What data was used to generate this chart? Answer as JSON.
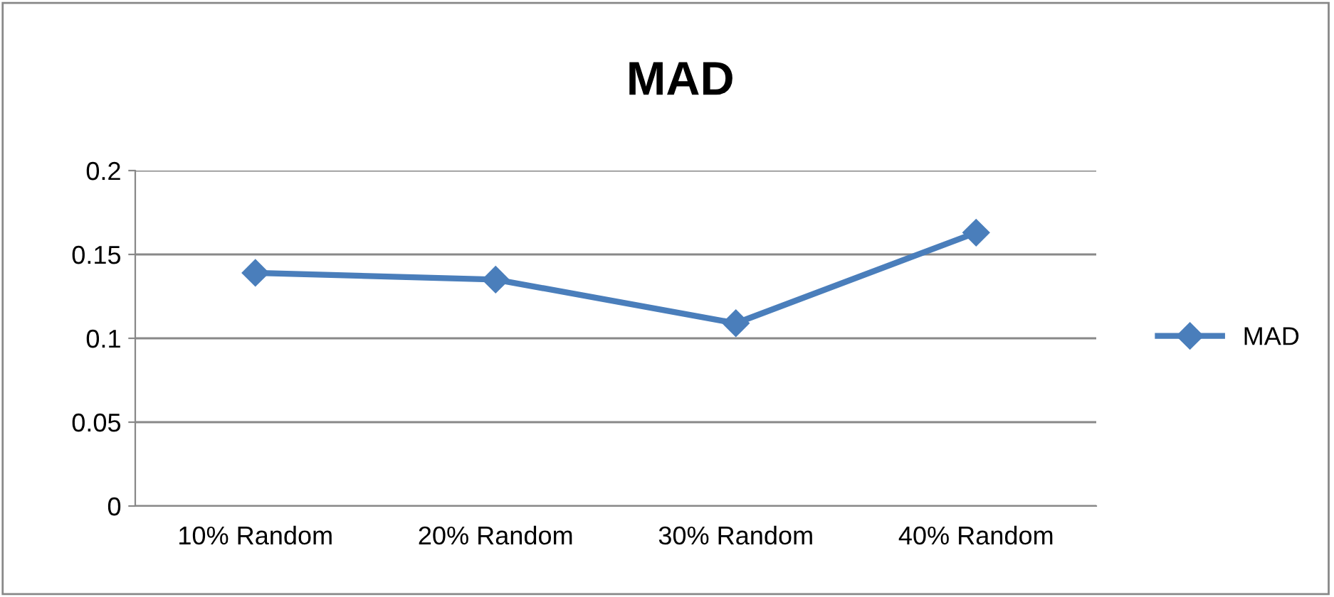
{
  "chart_data": {
    "type": "line",
    "title": "MAD",
    "categories": [
      "10% Random",
      "20% Random",
      "30% Random",
      "40% Random"
    ],
    "series": [
      {
        "name": "MAD",
        "color": "#4a7ebb",
        "values": [
          0.139,
          0.135,
          0.109,
          0.163
        ]
      }
    ],
    "ylim": [
      0,
      0.2
    ],
    "yticks": [
      {
        "value": 0,
        "label": "0"
      },
      0.05,
      0.1,
      0.15,
      0.2
    ],
    "grid": "y",
    "legend": "right",
    "marker": "diamond",
    "line_style": "solid"
  }
}
